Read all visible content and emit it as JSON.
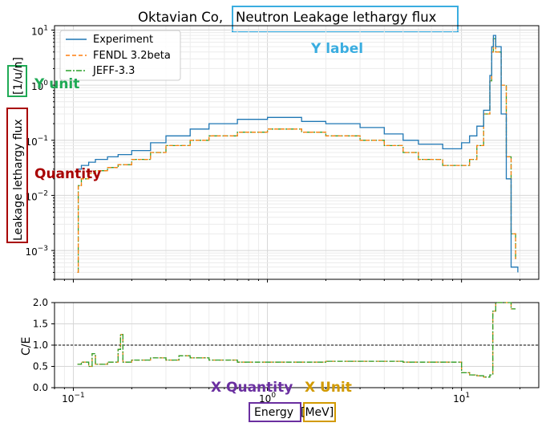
{
  "chart_data": [
    {
      "type": "line",
      "title": "Oktavian Co, Neutron Leakage lethargy flux",
      "title_prefix": "Oktavian Co,",
      "title_boxed": "Neutron Leakage lethargy flux",
      "ylabel": "Leakage lethargy flux [1/u/n]",
      "ylabel_quantity": "Leakage lethargy flux",
      "ylabel_unit": "[1/u/n]",
      "xscale": "log",
      "yscale": "log",
      "xlim": [
        0.08,
        25
      ],
      "ylim": [
        0.0003,
        12
      ],
      "xticks": [
        "10^-1",
        "10^0",
        "10^1"
      ],
      "yticks": [
        "10^-3",
        "10^-2",
        "10^-1",
        "10^0",
        "10^1"
      ],
      "grid": true,
      "legend_position": "upper-left",
      "series": [
        {
          "name": "Experiment",
          "color": "#1f77b4",
          "style": "solid",
          "x": [
            0.105,
            0.11,
            0.12,
            0.13,
            0.15,
            0.17,
            0.2,
            0.25,
            0.3,
            0.4,
            0.5,
            0.7,
            1.0,
            1.5,
            2.0,
            3.0,
            4.0,
            5.0,
            6.0,
            8.0,
            10.0,
            11.0,
            12.0,
            13.0,
            14.0,
            14.3,
            14.6,
            15.0,
            16.0,
            17.0,
            18.0,
            19.5
          ],
          "y": [
            0.03,
            0.035,
            0.04,
            0.045,
            0.05,
            0.055,
            0.065,
            0.09,
            0.12,
            0.16,
            0.2,
            0.24,
            0.26,
            0.22,
            0.2,
            0.17,
            0.13,
            0.1,
            0.085,
            0.07,
            0.09,
            0.12,
            0.18,
            0.35,
            1.5,
            5.0,
            8.0,
            5.0,
            0.3,
            0.02,
            0.0005,
            0.0004
          ]
        },
        {
          "name": "FENDL 3.2beta",
          "color": "#ff7f0e",
          "style": "dashed",
          "x": [
            0.105,
            0.106,
            0.11,
            0.12,
            0.13,
            0.15,
            0.17,
            0.2,
            0.25,
            0.3,
            0.4,
            0.5,
            0.7,
            1.0,
            1.5,
            2.0,
            3.0,
            4.0,
            5.0,
            6.0,
            8.0,
            10.0,
            11.0,
            12.0,
            13.0,
            14.0,
            14.3,
            14.6,
            15.0,
            16.0,
            17.0,
            18.0,
            19.0
          ],
          "y": [
            0.0004,
            0.015,
            0.02,
            0.025,
            0.028,
            0.032,
            0.036,
            0.045,
            0.06,
            0.08,
            0.1,
            0.12,
            0.14,
            0.16,
            0.14,
            0.12,
            0.1,
            0.08,
            0.06,
            0.045,
            0.035,
            0.035,
            0.045,
            0.08,
            0.3,
            1.2,
            4.0,
            7.0,
            4.0,
            1.0,
            0.05,
            0.002,
            0.0007
          ]
        },
        {
          "name": "JEFF-3.3",
          "color": "#2ca02c",
          "style": "dashdot",
          "x": [
            0.105,
            0.106,
            0.11,
            0.12,
            0.13,
            0.15,
            0.17,
            0.2,
            0.25,
            0.3,
            0.4,
            0.5,
            0.7,
            1.0,
            1.5,
            2.0,
            3.0,
            4.0,
            5.0,
            6.0,
            8.0,
            10.0,
            11.0,
            12.0,
            13.0,
            14.0,
            14.3,
            14.6,
            15.0,
            16.0,
            17.0,
            18.0,
            19.0
          ],
          "y": [
            0.0004,
            0.015,
            0.02,
            0.025,
            0.028,
            0.032,
            0.036,
            0.045,
            0.06,
            0.08,
            0.1,
            0.12,
            0.14,
            0.16,
            0.14,
            0.12,
            0.1,
            0.08,
            0.06,
            0.045,
            0.035,
            0.035,
            0.045,
            0.08,
            0.3,
            1.2,
            4.0,
            7.0,
            4.0,
            1.0,
            0.05,
            0.002,
            0.0007
          ]
        }
      ]
    },
    {
      "type": "line",
      "ylabel": "C/E",
      "xlabel": "Energy [MeV]",
      "xlabel_quantity": "Energy",
      "xlabel_unit": "[MeV]",
      "xscale": "log",
      "xlim": [
        0.08,
        25
      ],
      "ylim": [
        0,
        2
      ],
      "yticks": [
        "0.0",
        "0.5",
        "1.0",
        "1.5",
        "2.0"
      ],
      "xticks": [
        "10^-1",
        "10^0",
        "10^1"
      ],
      "reference_line": 1.0,
      "grid": true,
      "series": [
        {
          "name": "FENDL 3.2beta",
          "color": "#ff7f0e",
          "style": "dashed",
          "x": [
            0.105,
            0.11,
            0.12,
            0.125,
            0.13,
            0.15,
            0.17,
            0.175,
            0.18,
            0.2,
            0.25,
            0.3,
            0.35,
            0.4,
            0.5,
            0.7,
            1.0,
            2.0,
            3.0,
            5.0,
            8.0,
            10.0,
            11.0,
            12.0,
            13.0,
            14.0,
            14.5,
            15.0,
            18.0,
            19.0
          ],
          "y": [
            0.55,
            0.6,
            0.5,
            0.8,
            0.55,
            0.6,
            0.9,
            1.25,
            0.6,
            0.65,
            0.7,
            0.65,
            0.75,
            0.7,
            0.65,
            0.6,
            0.6,
            0.62,
            0.62,
            0.6,
            0.6,
            0.35,
            0.3,
            0.28,
            0.25,
            0.3,
            1.8,
            2.0,
            1.85,
            1.85
          ]
        },
        {
          "name": "JEFF-3.3",
          "color": "#2ca02c",
          "style": "dashdot",
          "x": [
            0.105,
            0.11,
            0.12,
            0.125,
            0.13,
            0.15,
            0.17,
            0.175,
            0.18,
            0.2,
            0.25,
            0.3,
            0.35,
            0.4,
            0.5,
            0.7,
            1.0,
            2.0,
            3.0,
            5.0,
            8.0,
            10.0,
            11.0,
            12.0,
            13.0,
            14.0,
            14.5,
            15.0,
            18.0,
            19.0
          ],
          "y": [
            0.55,
            0.6,
            0.5,
            0.8,
            0.55,
            0.6,
            0.9,
            1.25,
            0.6,
            0.65,
            0.7,
            0.65,
            0.75,
            0.7,
            0.65,
            0.6,
            0.6,
            0.62,
            0.62,
            0.6,
            0.6,
            0.35,
            0.3,
            0.28,
            0.25,
            0.3,
            1.8,
            2.0,
            1.85,
            1.85
          ]
        }
      ]
    }
  ],
  "annotations": {
    "y_label": "Y label",
    "y_unit": "Y unit",
    "quantity": "Quantity",
    "x_quantity": "X Quantity",
    "x_unit": "X Unit",
    "colors": {
      "y_label": "#3aade0",
      "y_unit": "#1faa55",
      "quantity": "#a80000",
      "x_quantity": "#6a2fa0",
      "x_unit": "#d29a00"
    }
  }
}
